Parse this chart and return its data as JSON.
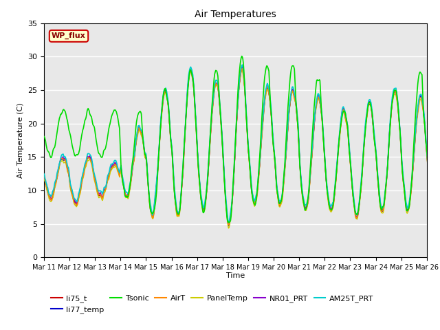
{
  "title": "Air Temperatures",
  "xlabel": "Time",
  "ylabel": "Air Temperature (C)",
  "ylim": [
    0,
    35
  ],
  "yticks": [
    0,
    5,
    10,
    15,
    20,
    25,
    30,
    35
  ],
  "x_tick_labels": [
    "Mar 11",
    "Mar 12",
    "Mar 13",
    "Mar 14",
    "Mar 15",
    "Mar 16",
    "Mar 17",
    "Mar 18",
    "Mar 19",
    "Mar 20",
    "Mar 21",
    "Mar 22",
    "Mar 23",
    "Mar 24",
    "Mar 25",
    "Mar 26"
  ],
  "series": {
    "li75_t": {
      "color": "#cc0000",
      "lw": 1.0
    },
    "li77_temp": {
      "color": "#0000cc",
      "lw": 1.0
    },
    "Tsonic": {
      "color": "#00dd00",
      "lw": 1.2
    },
    "AirT": {
      "color": "#ff8800",
      "lw": 1.0
    },
    "PanelTemp": {
      "color": "#cccc00",
      "lw": 1.0
    },
    "NR01_PRT": {
      "color": "#8800cc",
      "lw": 1.0
    },
    "AM25T_PRT": {
      "color": "#00cccc",
      "lw": 1.2
    }
  },
  "wp_flux_box": {
    "text": "WP_flux",
    "facecolor": "#ffffcc",
    "edgecolor": "#cc0000",
    "textcolor": "#880000"
  },
  "background_color": "#e8e8e8",
  "figure_bg": "#ffffff",
  "grid_color": "#ffffff",
  "legend_entries": [
    "li75_t",
    "li77_temp",
    "Tsonic",
    "AirT",
    "PanelTemp",
    "NR01_PRT",
    "AM25T_PRT"
  ],
  "legend_colors": [
    "#cc0000",
    "#0000cc",
    "#00dd00",
    "#ff8800",
    "#cccc00",
    "#8800cc",
    "#00cccc"
  ]
}
